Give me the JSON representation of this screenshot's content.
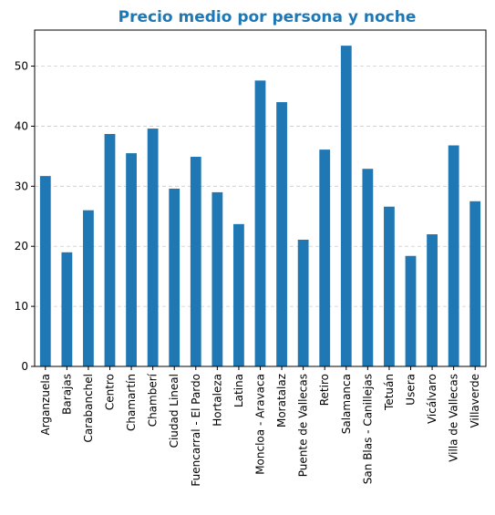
{
  "chart_data": {
    "type": "bar",
    "title": "Precio medio por persona y noche",
    "xlabel": "",
    "ylabel": "",
    "categories": [
      "Arganzuela",
      "Barajas",
      "Carabanchel",
      "Centro",
      "Chamartín",
      "Chamberí",
      "Ciudad Lineal",
      "Fuencarral - El Pardo",
      "Hortaleza",
      "Latina",
      "Moncloa - Aravaca",
      "Moratalaz",
      "Puente de Vallecas",
      "Retiro",
      "Salamanca",
      "San Blas - Canillejas",
      "Tetuán",
      "Usera",
      "Vicálvaro",
      "Villa de Vallecas",
      "Villaverde"
    ],
    "values": [
      31.7,
      19.0,
      26.0,
      38.7,
      35.5,
      39.6,
      29.6,
      34.9,
      29.0,
      23.7,
      47.6,
      44.0,
      21.1,
      36.1,
      53.4,
      32.9,
      26.6,
      18.4,
      22.0,
      36.8,
      27.5
    ],
    "ylim": [
      0,
      56
    ],
    "yticks": [
      0,
      10,
      20,
      30,
      40,
      50
    ],
    "grid": "y-dashed",
    "bar_color": "#1f77b4",
    "title_color": "#1f77b4"
  }
}
